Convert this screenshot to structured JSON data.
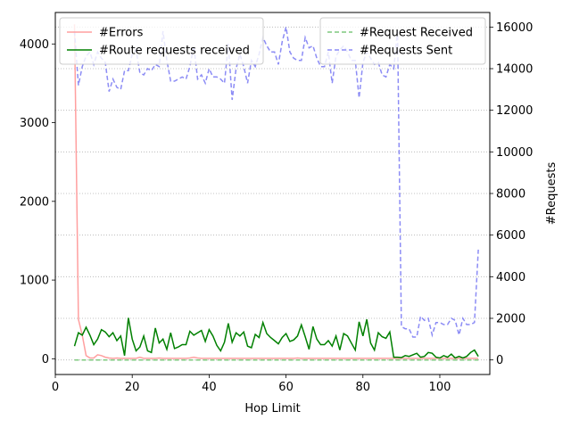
{
  "chart_data": {
    "type": "line",
    "xlabel": "Hop Limit",
    "ylabel_left": "",
    "ylabel_right": "#Requests",
    "xlim": [
      0,
      113
    ],
    "ylim_left": [
      -200,
      4400
    ],
    "ylim_right": [
      -700,
      16700
    ],
    "xticks": [
      0,
      20,
      40,
      60,
      80,
      100
    ],
    "yticks_left": [
      0,
      1000,
      2000,
      3000,
      4000
    ],
    "yticks_right": [
      0,
      2000,
      4000,
      6000,
      8000,
      10000,
      12000,
      14000,
      16000
    ],
    "grid": "right-axis horizontal dotted",
    "legend_left": "top-left",
    "legend_right": "top-right",
    "x": [
      5,
      6,
      7,
      8,
      9,
      10,
      11,
      12,
      13,
      14,
      15,
      16,
      17,
      18,
      19,
      20,
      21,
      22,
      23,
      24,
      25,
      26,
      27,
      28,
      29,
      30,
      31,
      32,
      33,
      34,
      35,
      36,
      37,
      38,
      39,
      40,
      41,
      42,
      43,
      44,
      45,
      46,
      47,
      48,
      49,
      50,
      51,
      52,
      53,
      54,
      55,
      56,
      57,
      58,
      59,
      60,
      61,
      62,
      63,
      64,
      65,
      66,
      67,
      68,
      69,
      70,
      71,
      72,
      73,
      74,
      75,
      76,
      77,
      78,
      79,
      80,
      81,
      82,
      83,
      84,
      85,
      86,
      87,
      88,
      89,
      90,
      91,
      92,
      93,
      94,
      95,
      96,
      97,
      98,
      99,
      100,
      101,
      102,
      103,
      104,
      105,
      106,
      107,
      108,
      109,
      110
    ],
    "series": [
      {
        "name": "#Errors",
        "axis": "left",
        "color": "#ff9f9f",
        "style": "solid",
        "values": [
          4250,
          500,
          300,
          40,
          10,
          10,
          50,
          40,
          20,
          10,
          5,
          10,
          5,
          5,
          5,
          5,
          5,
          20,
          5,
          5,
          5,
          5,
          10,
          5,
          5,
          5,
          5,
          5,
          5,
          5,
          10,
          20,
          10,
          5,
          5,
          5,
          5,
          5,
          5,
          5,
          5,
          5,
          5,
          5,
          5,
          5,
          5,
          5,
          5,
          5,
          5,
          5,
          5,
          5,
          5,
          5,
          5,
          5,
          10,
          5,
          5,
          5,
          5,
          5,
          5,
          5,
          5,
          5,
          5,
          5,
          5,
          5,
          5,
          5,
          5,
          5,
          5,
          5,
          5,
          5,
          5,
          5,
          5,
          5,
          5,
          5,
          5,
          5,
          5,
          5,
          5,
          5,
          5,
          5,
          5,
          5,
          5,
          5,
          5,
          5,
          5,
          5,
          5,
          5,
          5,
          5
        ]
      },
      {
        "name": "#Route requests received",
        "axis": "left",
        "color": "#008000",
        "style": "solid",
        "values": [
          160,
          330,
          300,
          400,
          300,
          180,
          250,
          370,
          340,
          280,
          330,
          230,
          290,
          40,
          520,
          250,
          100,
          150,
          290,
          100,
          80,
          390,
          200,
          250,
          120,
          330,
          130,
          150,
          180,
          180,
          350,
          300,
          330,
          360,
          220,
          370,
          290,
          170,
          100,
          210,
          450,
          210,
          330,
          290,
          340,
          160,
          140,
          310,
          270,
          460,
          320,
          270,
          230,
          190,
          270,
          320,
          220,
          240,
          290,
          430,
          280,
          120,
          410,
          250,
          180,
          180,
          230,
          160,
          290,
          110,
          320,
          290,
          200,
          110,
          470,
          290,
          500,
          200,
          110,
          330,
          280,
          260,
          340,
          20,
          20,
          15,
          40,
          30,
          50,
          70,
          20,
          30,
          80,
          70,
          20,
          10,
          40,
          20,
          60,
          10,
          30,
          10,
          30,
          80,
          110,
          30
        ]
      },
      {
        "name": "#Request Received",
        "axis": "right",
        "color": "#7fc97f",
        "style": "dashed",
        "values": [
          0,
          0,
          0,
          0,
          0,
          0,
          0,
          0,
          0,
          0,
          0,
          0,
          0,
          0,
          0,
          0,
          0,
          0,
          0,
          0,
          0,
          0,
          0,
          0,
          0,
          0,
          0,
          0,
          0,
          0,
          0,
          0,
          0,
          0,
          0,
          0,
          0,
          0,
          0,
          0,
          0,
          0,
          0,
          0,
          0,
          0,
          0,
          0,
          0,
          0,
          0,
          0,
          0,
          0,
          0,
          0,
          0,
          0,
          0,
          0,
          0,
          0,
          0,
          0,
          0,
          0,
          0,
          0,
          0,
          0,
          0,
          0,
          0,
          0,
          0,
          0,
          0,
          0,
          0,
          0,
          0,
          0,
          0,
          0,
          0,
          0,
          0,
          0,
          0,
          0,
          0,
          0,
          0,
          0,
          0,
          0,
          0,
          0,
          0,
          0,
          0,
          0,
          0,
          0,
          0,
          0
        ]
      },
      {
        "name": "#Requests Sent",
        "axis": "right",
        "color": "#8c8cf5",
        "style": "dashed",
        "values": [
          15800,
          13200,
          14100,
          14600,
          14800,
          14200,
          14800,
          14500,
          14300,
          12900,
          13500,
          13100,
          13000,
          13900,
          13900,
          14700,
          14900,
          13800,
          13700,
          14000,
          13900,
          14200,
          14100,
          15800,
          14400,
          13400,
          13400,
          13500,
          13600,
          13500,
          14100,
          15100,
          13500,
          13700,
          13300,
          14000,
          13600,
          13600,
          13500,
          13300,
          15200,
          12500,
          14000,
          14700,
          14100,
          13300,
          14400,
          14100,
          14700,
          15500,
          15100,
          14800,
          14800,
          14200,
          15300,
          16000,
          14800,
          14500,
          14400,
          14400,
          15500,
          15000,
          15100,
          14500,
          14100,
          14100,
          14800,
          13300,
          14600,
          14900,
          15100,
          14800,
          14400,
          14400,
          12600,
          14300,
          14800,
          14500,
          14200,
          14300,
          13700,
          13600,
          14200,
          14000,
          15800,
          1600,
          1500,
          1500,
          1100,
          1100,
          2100,
          1900,
          2000,
          1200,
          1800,
          1800,
          1700,
          1700,
          2000,
          1900,
          1200,
          2000,
          1700,
          1700,
          1800,
          5300
        ]
      }
    ]
  }
}
